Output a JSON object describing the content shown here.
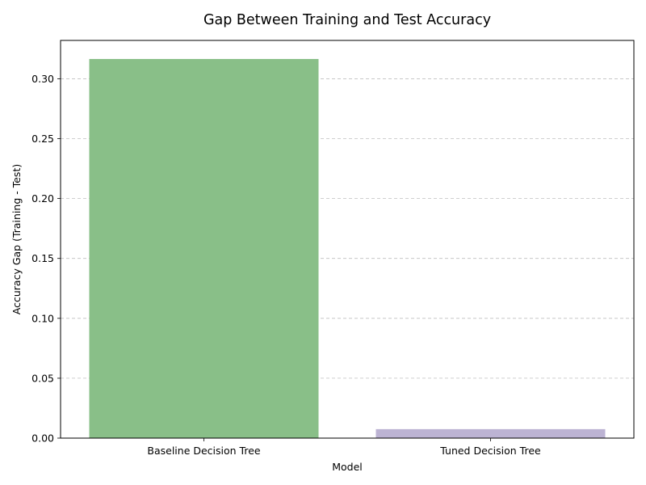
{
  "chart_data": {
    "type": "bar",
    "title": "Gap Between Training and Test Accuracy",
    "xlabel": "Model",
    "ylabel": "Accuracy Gap (Training - Test)",
    "categories": [
      "Baseline Decision Tree",
      "Tuned Decision Tree"
    ],
    "values": [
      0.3165,
      0.0075
    ],
    "colors": [
      "#89bf88",
      "#bcb3d3"
    ],
    "ylim": [
      0,
      0.332
    ],
    "yticks": [
      0.0,
      0.05,
      0.1,
      0.15,
      0.2,
      0.25,
      0.3
    ],
    "ytick_labels": [
      "0.00",
      "0.05",
      "0.10",
      "0.15",
      "0.20",
      "0.25",
      "0.30"
    ],
    "grid": {
      "axis": "y",
      "style": "dashed"
    },
    "legend": "none"
  }
}
